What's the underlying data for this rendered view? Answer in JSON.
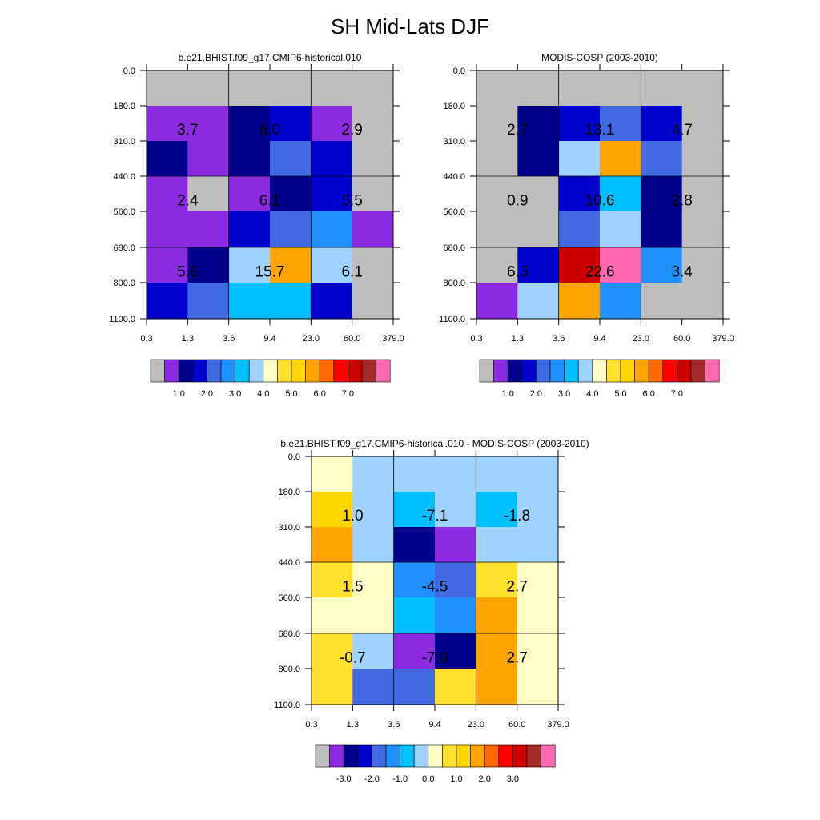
{
  "title": "SH Mid-Lats DJF",
  "colors": {
    "missing": "#bebebe",
    "abs_palette": [
      "#8a2be2",
      "#00008b",
      "#0000cd",
      "#4169e1",
      "#1e90ff",
      "#00bfff",
      "#a0d2ff",
      "#ffffc8",
      "#ffe12d",
      "#ffd700",
      "#ffa500",
      "#ff6a00",
      "#ff0000",
      "#cd0000",
      "#a52a2a",
      "#ff69b4"
    ],
    "diff_palette": [
      "#8a2be2",
      "#00008b",
      "#0000cd",
      "#4169e1",
      "#1e90ff",
      "#00bfff",
      "#a0d2ff",
      "#ffffc8",
      "#ffe12d",
      "#ffd700",
      "#ffa500",
      "#ff6a00",
      "#ff0000",
      "#cd0000",
      "#a52a2a",
      "#ff69b4"
    ]
  },
  "chart_data": [
    {
      "type": "heatmap",
      "title": "b.e21.BHIST.f09_g17.CMIP6-historical.010",
      "xticks": [
        "0.3",
        "1.3",
        "3.6",
        "9.4",
        "23.0",
        "60.0",
        "379.0"
      ],
      "yticks": [
        "0.0",
        "180.0",
        "310.0",
        "440.0",
        "560.0",
        "680.0",
        "800.0",
        "1100.0"
      ],
      "cells": [
        [
          "missing",
          "missing",
          "missing",
          "missing",
          "missing",
          "missing"
        ],
        [
          "#8a2be2",
          "#8a2be2",
          "#00008b",
          "#0000cd",
          "#8a2be2",
          "missing"
        ],
        [
          "#00008b",
          "#8a2be2",
          "#00008b",
          "#4169e1",
          "#0000cd",
          "missing"
        ],
        [
          "#8a2be2",
          "missing",
          "#8a2be2",
          "#00008b",
          "#0000cd",
          "missing"
        ],
        [
          "#8a2be2",
          "#8a2be2",
          "#0000cd",
          "#4169e1",
          "#1e90ff",
          "#8a2be2"
        ],
        [
          "#8a2be2",
          "#00008b",
          "#a0d2ff",
          "#ffa500",
          "#a0d2ff",
          "missing"
        ],
        [
          "#0000cd",
          "#4169e1",
          "#00bfff",
          "#00bfff",
          "#0000cd",
          "missing"
        ]
      ],
      "block_values": [
        [
          "3.7",
          "6.0",
          "2.9"
        ],
        [
          "2.4",
          "6.1",
          "5.5"
        ],
        [
          "5.6",
          "15.7",
          "6.1"
        ]
      ],
      "legend_labels": [
        "1.0",
        "2.0",
        "3.0",
        "4.0",
        "5.0",
        "6.0",
        "7.0"
      ],
      "legend_colors": [
        "#bebebe",
        "#8a2be2",
        "#00008b",
        "#0000cd",
        "#4169e1",
        "#1e90ff",
        "#00bfff",
        "#a0d2ff",
        "#ffffc8",
        "#ffe12d",
        "#ffd700",
        "#ffa500",
        "#ff6a00",
        "#ff0000",
        "#cd0000",
        "#a52a2a",
        "#ff69b4"
      ]
    },
    {
      "type": "heatmap",
      "title": "MODIS-COSP (2003-2010)",
      "xticks": [
        "0.3",
        "1.3",
        "3.6",
        "9.4",
        "23.0",
        "60.0",
        "379.0"
      ],
      "yticks": [
        "0.0",
        "180.0",
        "310.0",
        "440.0",
        "560.0",
        "680.0",
        "800.0",
        "1100.0"
      ],
      "cells": [
        [
          "missing",
          "missing",
          "missing",
          "missing",
          "missing",
          "missing"
        ],
        [
          "missing",
          "#00008b",
          "#0000cd",
          "#4169e1",
          "#0000cd",
          "missing"
        ],
        [
          "missing",
          "#00008b",
          "#a0d2ff",
          "#ffa500",
          "#4169e1",
          "missing"
        ],
        [
          "missing",
          "missing",
          "#0000cd",
          "#00bfff",
          "#00008b",
          "missing"
        ],
        [
          "missing",
          "missing",
          "#4169e1",
          "#a0d2ff",
          "#00008b",
          "missing"
        ],
        [
          "missing",
          "#0000cd",
          "#cd0000",
          "#ff69b4",
          "#1e90ff",
          "missing"
        ],
        [
          "#8a2be2",
          "#a0d2ff",
          "#ffa500",
          "#1e90ff",
          "missing",
          "missing"
        ]
      ],
      "block_values": [
        [
          "2.7",
          "13.1",
          "4.7"
        ],
        [
          "0.9",
          "10.6",
          "2.8"
        ],
        [
          "6.3",
          "22.6",
          "3.4"
        ]
      ],
      "legend_labels": [
        "1.0",
        "2.0",
        "3.0",
        "4.0",
        "5.0",
        "6.0",
        "7.0"
      ],
      "legend_colors": [
        "#bebebe",
        "#8a2be2",
        "#00008b",
        "#0000cd",
        "#4169e1",
        "#1e90ff",
        "#00bfff",
        "#a0d2ff",
        "#ffffc8",
        "#ffe12d",
        "#ffd700",
        "#ffa500",
        "#ff6a00",
        "#ff0000",
        "#cd0000",
        "#a52a2a",
        "#ff69b4"
      ]
    },
    {
      "type": "heatmap",
      "title": "b.e21.BHIST.f09_g17.CMIP6-historical.010 - MODIS-COSP (2003-2010)",
      "xticks": [
        "0.3",
        "1.3",
        "3.6",
        "9.4",
        "23.0",
        "60.0",
        "379.0"
      ],
      "yticks": [
        "0.0",
        "180.0",
        "310.0",
        "440.0",
        "560.0",
        "680.0",
        "800.0",
        "1100.0"
      ],
      "cells": [
        [
          "#ffffc8",
          "#a0d2ff",
          "#a0d2ff",
          "#a0d2ff",
          "#a0d2ff",
          "#a0d2ff"
        ],
        [
          "#ffd700",
          "#a0d2ff",
          "#00bfff",
          "#a0d2ff",
          "#00bfff",
          "#a0d2ff"
        ],
        [
          "#ffa500",
          "#a0d2ff",
          "#00008b",
          "#8a2be2",
          "#a0d2ff",
          "#a0d2ff"
        ],
        [
          "#ffe12d",
          "#ffffc8",
          "#1e90ff",
          "#4169e1",
          "#ffe12d",
          "#ffffc8"
        ],
        [
          "#ffffc8",
          "#ffffc8",
          "#00bfff",
          "#1e90ff",
          "#ffa500",
          "#ffffc8"
        ],
        [
          "#ffe12d",
          "#a0d2ff",
          "#8a2be2",
          "#00008b",
          "#ffa500",
          "#ffffc8"
        ],
        [
          "#ffe12d",
          "#4169e1",
          "#4169e1",
          "#ffe12d",
          "#ffa500",
          "#ffffc8"
        ]
      ],
      "block_values": [
        [
          "1.0",
          "-7.1",
          "-1.8"
        ],
        [
          "1.5",
          "-4.5",
          "2.7"
        ],
        [
          "-0.7",
          "-7.0",
          "2.7"
        ]
      ],
      "legend_labels": [
        "-3.0",
        "-2.0",
        "-1.0",
        "0.0",
        "1.0",
        "2.0",
        "3.0"
      ],
      "legend_colors": [
        "#bebebe",
        "#8a2be2",
        "#00008b",
        "#0000cd",
        "#4169e1",
        "#1e90ff",
        "#00bfff",
        "#a0d2ff",
        "#ffffc8",
        "#ffe12d",
        "#ffd700",
        "#ffa500",
        "#ff6a00",
        "#ff0000",
        "#cd0000",
        "#a52a2a",
        "#ff69b4"
      ]
    }
  ]
}
